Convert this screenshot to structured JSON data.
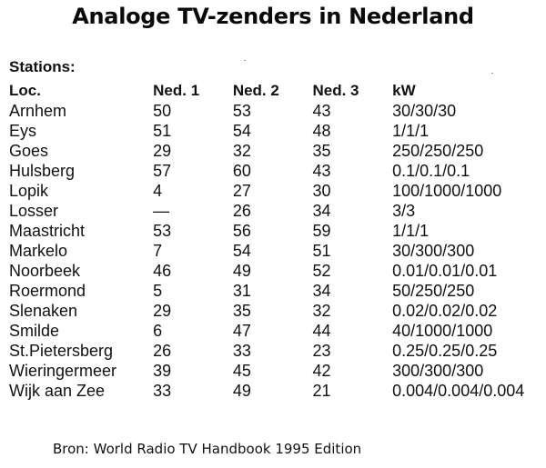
{
  "title": "Analoge TV-zenders in Nederland",
  "stations_label": "Stations:",
  "columns": [
    "Loc.",
    "Ned. 1",
    "Ned. 2",
    "Ned. 3",
    "kW"
  ],
  "rows": [
    [
      "Arnhem",
      "50",
      "53",
      "43",
      "30/30/30"
    ],
    [
      "Eys",
      "51",
      "54",
      "48",
      "1/1/1"
    ],
    [
      "Goes",
      "29",
      "32",
      "35",
      "250/250/250"
    ],
    [
      "Hulsberg",
      "57",
      "60",
      "43",
      "0.1/0.1/0.1"
    ],
    [
      "Lopik",
      "4",
      "27",
      "30",
      "100/1000/1000"
    ],
    [
      "Losser",
      "—",
      "26",
      "34",
      "3/3"
    ],
    [
      "Maastricht",
      "53",
      "56",
      "59",
      "1/1/1"
    ],
    [
      "Markelo",
      "7",
      "54",
      "51",
      "30/300/300"
    ],
    [
      "Noorbeek",
      "46",
      "49",
      "52",
      "0.01/0.01/0.01"
    ],
    [
      "Roermond",
      "5",
      "31",
      "34",
      "50/250/250"
    ],
    [
      "Slenaken",
      "29",
      "35",
      "32",
      "0.02/0.02/0.02"
    ],
    [
      "Smilde",
      "6",
      "47",
      "44",
      "40/1000/1000"
    ],
    [
      "St.Pietersberg",
      "26",
      "33",
      "23",
      "0.25/0.25/0.25"
    ],
    [
      "Wieringermeer",
      "39",
      "45",
      "42",
      "300/300/300"
    ],
    [
      "Wijk aan Zee",
      "33",
      "49",
      "21",
      "0.004/0.004/0.004"
    ]
  ],
  "source": "Bron: World Radio TV Handbook 1995 Edition"
}
